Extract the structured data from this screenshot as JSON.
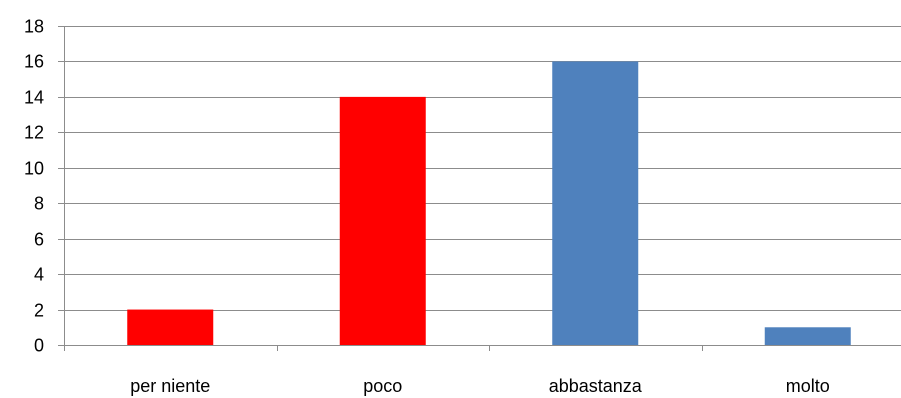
{
  "chart_data": {
    "type": "bar",
    "categories": [
      "per niente",
      "poco",
      "abbastanza",
      "molto"
    ],
    "values": [
      2,
      14,
      16,
      1
    ],
    "bar_colors": [
      "#ff0000",
      "#ff0000",
      "#4f81bd",
      "#4f81bd"
    ],
    "ylim": [
      0,
      18
    ],
    "yticks": [
      0,
      2,
      4,
      6,
      8,
      10,
      12,
      14,
      16,
      18
    ],
    "grid": true,
    "legend": "none",
    "title": "",
    "xlabel": "",
    "ylabel": ""
  }
}
